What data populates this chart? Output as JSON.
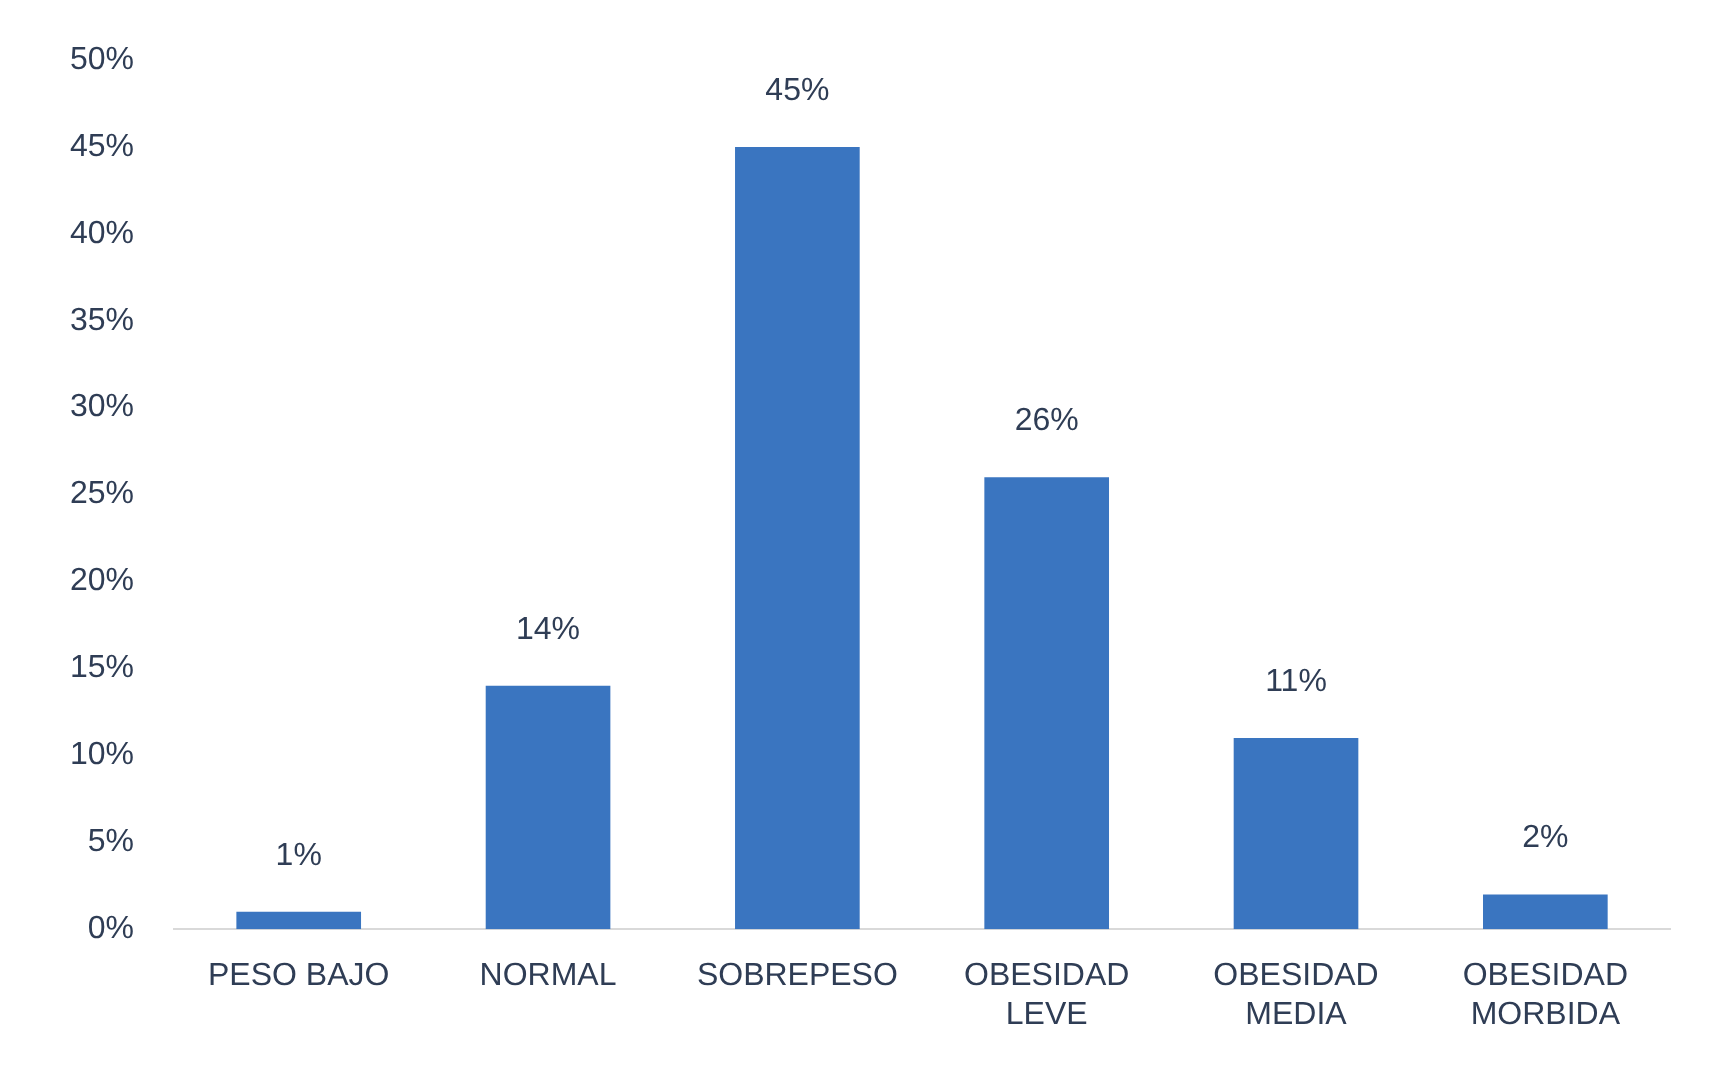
{
  "chart_data": {
    "type": "bar",
    "categories": [
      "PESO BAJO",
      "NORMAL",
      "SOBREPESO",
      "OBESIDAD LEVE",
      "OBESIDAD MEDIA",
      "OBESIDAD MORBIDA"
    ],
    "values": [
      1,
      14,
      45,
      26,
      11,
      2
    ],
    "color": "#3a75c0",
    "value_labels": [
      "1%",
      "14%",
      "45%",
      "26%",
      "11%",
      "2%"
    ],
    "ylim": [
      0,
      50
    ],
    "yticks": [
      {
        "value": 0,
        "label": "0%"
      },
      {
        "value": 5,
        "label": "5%"
      },
      {
        "value": 10,
        "label": "10%"
      },
      {
        "value": 15,
        "label": "15%"
      },
      {
        "value": 20,
        "label": "20%"
      },
      {
        "value": 25,
        "label": "25%"
      },
      {
        "value": 30,
        "label": "30%"
      },
      {
        "value": 35,
        "label": "35%"
      },
      {
        "value": 40,
        "label": "40%"
      },
      {
        "value": 45,
        "label": "45%"
      },
      {
        "value": 50,
        "label": "50%"
      }
    ],
    "grid": false,
    "legend": false
  }
}
